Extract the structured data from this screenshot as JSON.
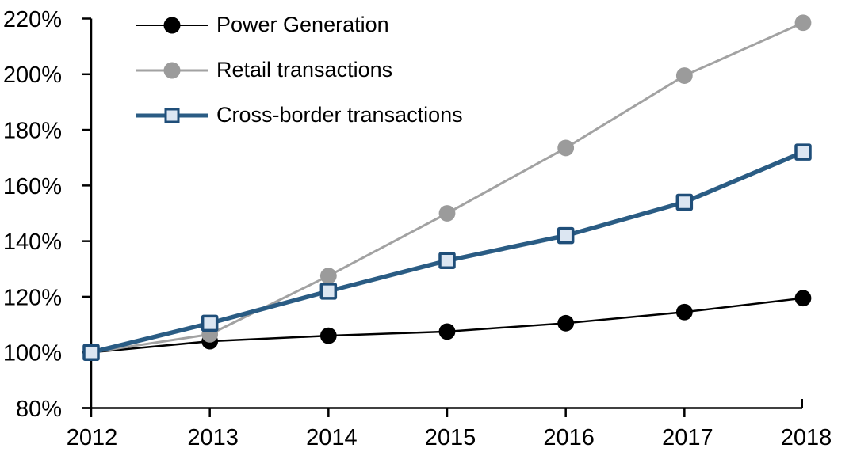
{
  "chart_data": {
    "type": "line",
    "title": "",
    "xlabel": "",
    "ylabel": "",
    "x": [
      2012,
      2013,
      2014,
      2015,
      2016,
      2017,
      2018
    ],
    "xtick_labels": [
      "2012",
      "2013",
      "2014",
      "2015",
      "2016",
      "2017",
      "2018"
    ],
    "ylim": [
      80,
      220
    ],
    "ytick_step": 20,
    "ytick_labels": [
      "80%",
      "100%",
      "120%",
      "140%",
      "160%",
      "180%",
      "200%",
      "220%"
    ],
    "grid": false,
    "legend_position": "top-left",
    "axis_color": "#000000",
    "series": [
      {
        "name": "Power Generation",
        "values": [
          100,
          104,
          106,
          107.5,
          110.5,
          114.5,
          119.5
        ],
        "color": "#000000",
        "marker": "circle",
        "marker_fill": "#000000",
        "line_width": 2.5
      },
      {
        "name": "Retail transactions",
        "values": [
          100,
          106.5,
          127.5,
          150,
          173.5,
          199.5,
          218.5
        ],
        "color": "#A2A2A2",
        "marker": "circle",
        "marker_fill": "#9B9B9B",
        "line_width": 3
      },
      {
        "name": "Cross-border transactions",
        "values": [
          100,
          110.5,
          122,
          133,
          142,
          154,
          172
        ],
        "color": "#2A5C84",
        "marker": "square",
        "marker_fill": "#DCE6F2",
        "marker_stroke": "#1F4E79",
        "line_width": 5.5
      }
    ]
  }
}
